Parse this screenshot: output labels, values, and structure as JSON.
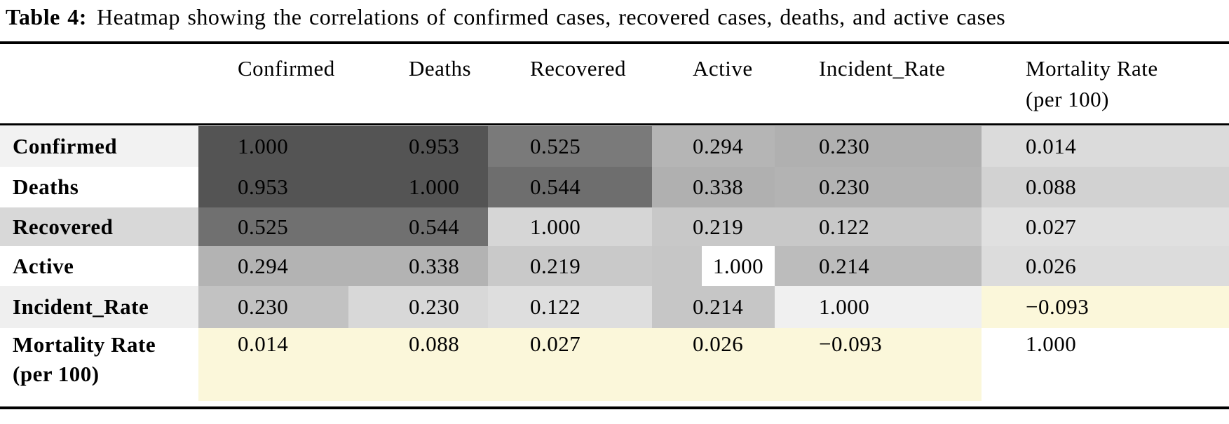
{
  "caption": {
    "label": "Table 4:",
    "text": "Heatmap showing the correlations of confirmed cases, recovered cases, deaths, and active cases"
  },
  "colors": {
    "rule": "#000000",
    "negative_band_yellow": "#fbf7da",
    "high_corr_dark": "#545454",
    "highlight_box_white": "#ffffff"
  },
  "table": {
    "columns": [
      {
        "label": "Confirmed"
      },
      {
        "label": "Deaths"
      },
      {
        "label": "Recovered"
      },
      {
        "label": "Active"
      },
      {
        "label": "Incident_Rate"
      },
      {
        "label": "Mortality Rate",
        "label_line2": "(per 100)"
      }
    ],
    "rows": [
      {
        "label": "Confirmed",
        "label_bg": "#f2f2f2",
        "cells": [
          {
            "value": "1.000",
            "bg": "#545454"
          },
          {
            "value": "0.953",
            "bg": "#545454"
          },
          {
            "value": "0.525",
            "bg": "#7a7a7a"
          },
          {
            "value": "0.294",
            "bg": "#b5b5b5"
          },
          {
            "value": "0.230",
            "bg": "#b0b0b0"
          },
          {
            "value": "0.014",
            "bg": "#dbdbdb"
          }
        ]
      },
      {
        "label": "Deaths",
        "label_bg": "#ffffff",
        "cells": [
          {
            "value": "0.953",
            "bg": "#545454"
          },
          {
            "value": "1.000",
            "bg": "#545454"
          },
          {
            "value": "0.544",
            "bg": "#6e6e6e"
          },
          {
            "value": "0.338",
            "bg": "#b0b0b0"
          },
          {
            "value": "0.230",
            "bg": "#b3b3b3"
          },
          {
            "value": "0.088",
            "bg": "#d2d2d2"
          }
        ]
      },
      {
        "label": "Recovered",
        "label_bg": "#d8d8d8",
        "cells": [
          {
            "value": "0.525",
            "bg": "#707070"
          },
          {
            "value": "0.544",
            "bg": "#707070"
          },
          {
            "value": "1.000",
            "bg": "#d6d6d6"
          },
          {
            "value": "0.219",
            "bg": "#c8c8c8"
          },
          {
            "value": "0.122",
            "bg": "#c8c8c8"
          },
          {
            "value": "0.027",
            "bg": "#e0e0e0"
          }
        ]
      },
      {
        "label": "Active",
        "label_bg": "#ffffff",
        "cells": [
          {
            "value": "0.294",
            "bg": "#b3b3b3"
          },
          {
            "value": "0.338",
            "bg": "#b3b3b3"
          },
          {
            "value": "0.219",
            "bg": "#c9c9c9"
          },
          {
            "value": "1.000",
            "bg": "#c6c6c6",
            "box_bg": "#ffffff"
          },
          {
            "value": "0.214",
            "bg": "#bcbcbc"
          },
          {
            "value": "0.026",
            "bg": "#dcdcdc"
          }
        ]
      },
      {
        "label": "Incident_Rate",
        "label_bg": "#efefef",
        "cells": [
          {
            "value": "0.230",
            "bg": "#c2c2c2"
          },
          {
            "value": "0.230",
            "bg": "#d8d8d8"
          },
          {
            "value": "0.122",
            "bg": "#dedede"
          },
          {
            "value": "0.214",
            "bg": "#c6c6c6"
          },
          {
            "value": "1.000",
            "bg": "#f0f0f0"
          },
          {
            "value": "−0.093",
            "bg": "#fbf7da"
          }
        ]
      },
      {
        "label": "Mortality Rate",
        "label_line2": "(per 100)",
        "label_bg": "#ffffff",
        "cells": [
          {
            "value": "0.014",
            "bg": "#fbf7da"
          },
          {
            "value": "0.088",
            "bg": "#fbf7da"
          },
          {
            "value": "0.027",
            "bg": "#fbf7da"
          },
          {
            "value": "0.026",
            "bg": "#fbf7da"
          },
          {
            "value": "−0.093",
            "bg": "#fbf7da"
          },
          {
            "value": "1.000",
            "bg": "#ffffff"
          }
        ]
      }
    ]
  },
  "chart_data": {
    "type": "heatmap",
    "title": "Table 4: Heatmap showing the correlations of confirmed cases, recovered cases, deaths, and active cases",
    "x_labels": [
      "Confirmed",
      "Deaths",
      "Recovered",
      "Active",
      "Incident_Rate",
      "Mortality Rate (per 100)"
    ],
    "y_labels": [
      "Confirmed",
      "Deaths",
      "Recovered",
      "Active",
      "Incident_Rate",
      "Mortality Rate (per 100)"
    ],
    "matrix": [
      [
        1.0,
        0.953,
        0.525,
        0.294,
        0.23,
        0.014
      ],
      [
        0.953,
        1.0,
        0.544,
        0.338,
        0.23,
        0.088
      ],
      [
        0.525,
        0.544,
        1.0,
        0.219,
        0.122,
        0.027
      ],
      [
        0.294,
        0.338,
        0.219,
        1.0,
        0.214,
        0.026
      ],
      [
        0.23,
        0.23,
        0.122,
        0.214,
        1.0,
        -0.093
      ],
      [
        0.014,
        0.088,
        0.027,
        0.026,
        -0.093,
        1.0
      ]
    ],
    "value_range": [
      -0.093,
      1.0
    ],
    "colorscale_note": "darker gray = stronger positive correlation; pale yellow band = Mortality Rate row/column and negative values",
    "legend": "none",
    "grid": false
  }
}
